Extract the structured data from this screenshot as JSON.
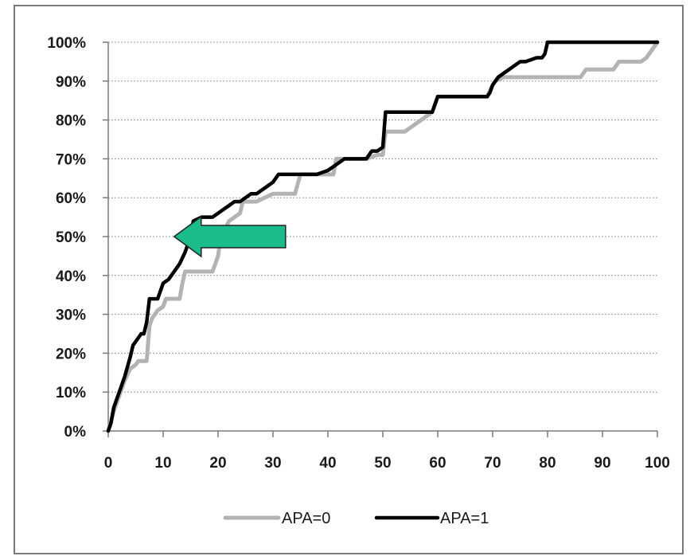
{
  "chart_data": {
    "type": "line",
    "title": "",
    "xlabel": "",
    "ylabel": "",
    "xlim": [
      0,
      100
    ],
    "ylim": [
      0,
      1
    ],
    "x_ticks": [
      0,
      10,
      20,
      30,
      40,
      50,
      60,
      70,
      80,
      90,
      100
    ],
    "y_ticks": [
      0,
      0.1,
      0.2,
      0.3,
      0.4,
      0.5,
      0.6,
      0.7,
      0.8,
      0.9,
      1.0
    ],
    "x_tick_labels": [
      "0",
      "10",
      "20",
      "30",
      "40",
      "50",
      "60",
      "70",
      "80",
      "90",
      "100"
    ],
    "y_tick_labels": [
      "0%",
      "10%",
      "20%",
      "30%",
      "40%",
      "50%",
      "60%",
      "70%",
      "80%",
      "90%",
      "100%"
    ],
    "grid": "horizontal",
    "legend_position": "bottom",
    "series": [
      {
        "name": "APA=0",
        "color": "#b3b3b3",
        "x": [
          0,
          1,
          2,
          3,
          4,
          5,
          5.5,
          7,
          7.5,
          8,
          9,
          10,
          10.5,
          13,
          13.5,
          14,
          15,
          16,
          19,
          20,
          20.5,
          22,
          24,
          24.5,
          27,
          30,
          30.5,
          34,
          35,
          41,
          41.5,
          42,
          43,
          47,
          49,
          50,
          50.5,
          54,
          57,
          59,
          60,
          66,
          69,
          70,
          70.5,
          72,
          80,
          81,
          86,
          87,
          92,
          93,
          97,
          98,
          100
        ],
        "y": [
          0,
          0.05,
          0.09,
          0.13,
          0.16,
          0.17,
          0.18,
          0.18,
          0.27,
          0.29,
          0.31,
          0.32,
          0.34,
          0.34,
          0.38,
          0.41,
          0.41,
          0.41,
          0.41,
          0.45,
          0.5,
          0.54,
          0.56,
          0.59,
          0.59,
          0.61,
          0.61,
          0.61,
          0.66,
          0.66,
          0.7,
          0.7,
          0.7,
          0.7,
          0.71,
          0.71,
          0.77,
          0.77,
          0.8,
          0.82,
          0.86,
          0.86,
          0.86,
          0.89,
          0.9,
          0.91,
          0.91,
          0.91,
          0.91,
          0.93,
          0.93,
          0.95,
          0.95,
          0.96,
          1.0
        ]
      },
      {
        "name": "APA=1",
        "color": "#000000",
        "x": [
          0,
          0.5,
          1,
          2,
          3,
          4,
          4.5,
          5,
          6,
          6.5,
          7,
          7.5,
          8,
          9,
          9.5,
          10,
          11,
          12,
          13,
          14,
          15,
          15.5,
          17,
          19,
          20,
          21,
          22,
          23,
          24,
          26,
          27,
          28,
          29,
          30,
          31,
          36,
          37,
          38,
          40,
          41,
          42,
          43,
          47,
          48,
          49,
          50,
          50.5,
          59,
          59.5,
          60,
          69,
          69.5,
          70,
          71,
          72,
          73,
          75,
          76,
          78,
          79,
          79.5,
          80,
          100
        ],
        "y": [
          0,
          0.02,
          0.06,
          0.1,
          0.14,
          0.19,
          0.22,
          0.23,
          0.25,
          0.25,
          0.28,
          0.34,
          0.34,
          0.34,
          0.36,
          0.38,
          0.39,
          0.41,
          0.43,
          0.46,
          0.5,
          0.54,
          0.55,
          0.55,
          0.56,
          0.57,
          0.58,
          0.59,
          0.59,
          0.61,
          0.61,
          0.62,
          0.63,
          0.64,
          0.66,
          0.66,
          0.66,
          0.66,
          0.67,
          0.68,
          0.69,
          0.7,
          0.7,
          0.72,
          0.72,
          0.73,
          0.82,
          0.82,
          0.84,
          0.86,
          0.86,
          0.87,
          0.89,
          0.91,
          0.92,
          0.93,
          0.95,
          0.95,
          0.96,
          0.96,
          0.97,
          1.0,
          1.0
        ]
      }
    ],
    "annotations": [
      {
        "type": "arrow",
        "color": "#1abc8c",
        "direction": "left",
        "points_to": {
          "x": 12,
          "y": 0.5
        }
      }
    ]
  }
}
